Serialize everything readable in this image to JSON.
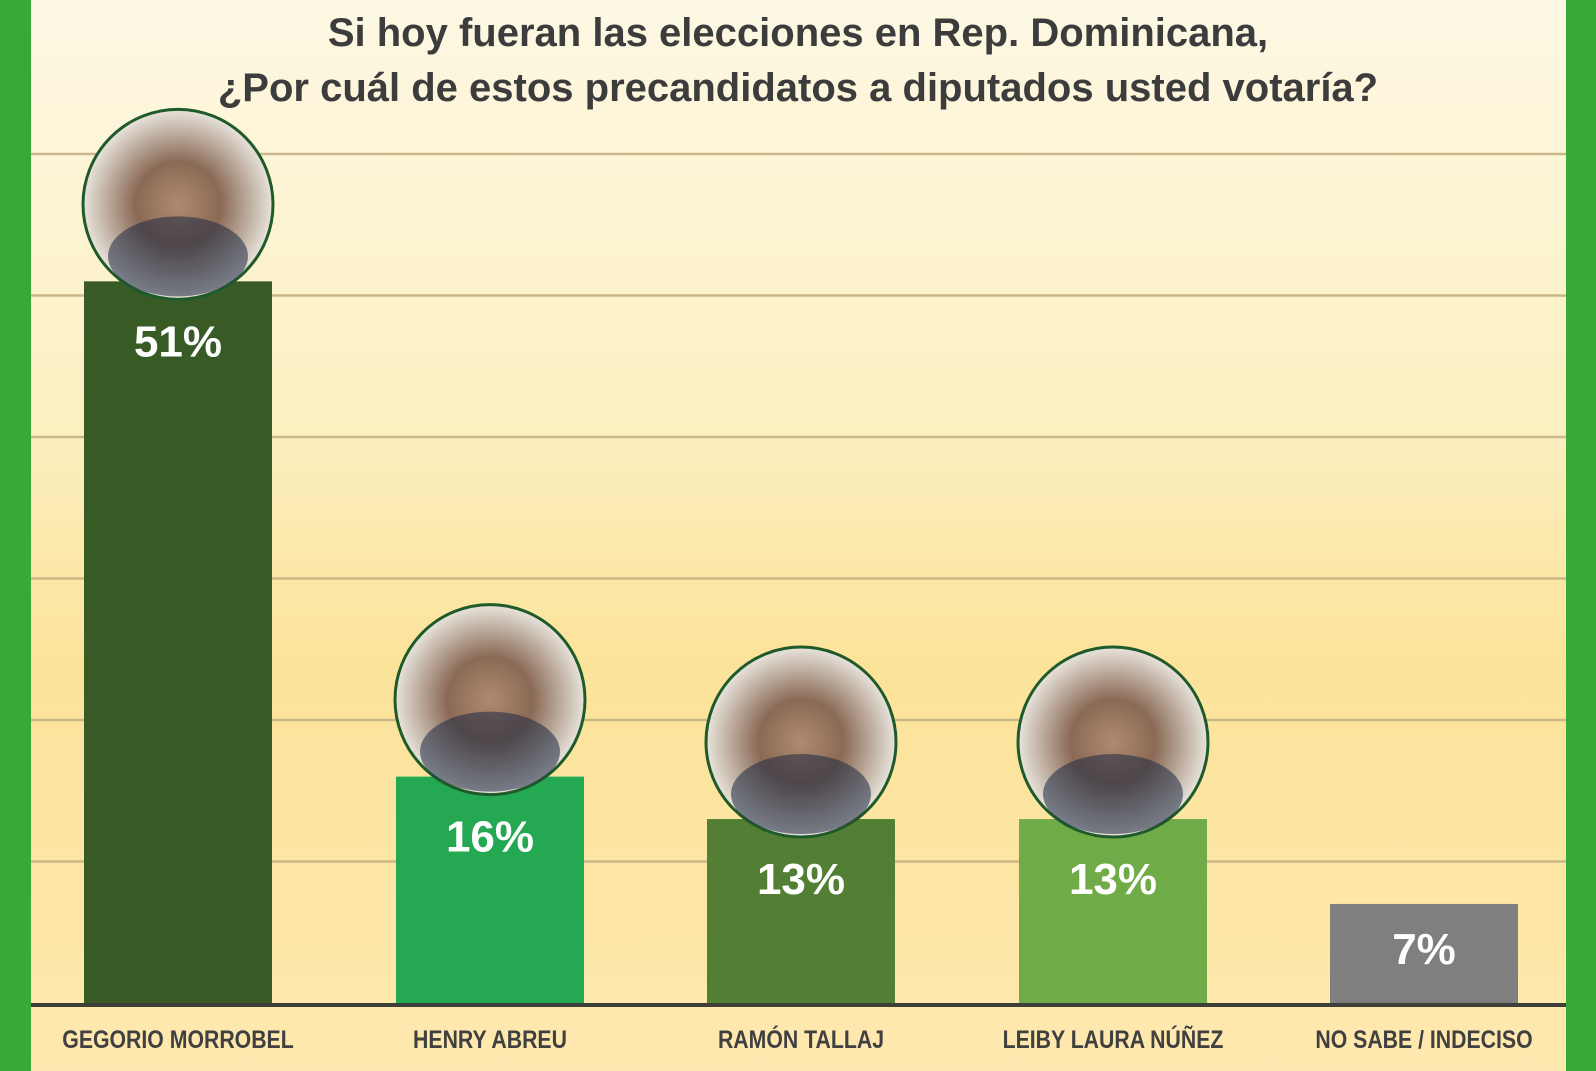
{
  "chart_data": {
    "type": "bar",
    "title": "Si hoy fueran las elecciones en Rep. Dominicana,",
    "subtitle": "¿Por cuál de estos precandidatos a diputados usted votaría?",
    "categories": [
      "GEGORIO MORROBEL",
      "HENRY ABREU",
      "RAMÓN TALLAJ",
      "LEIBY LAURA NÚÑEZ",
      "NO SABE / INDECISO"
    ],
    "values": [
      51,
      16,
      13,
      13,
      7
    ],
    "data_labels": [
      "51%",
      "16%",
      "13%",
      "13%",
      "7%"
    ],
    "colors": [
      "#385a25",
      "#24a852",
      "#527f34",
      "#6fac47",
      "#7f7f7f"
    ],
    "has_photo": [
      true,
      true,
      true,
      true,
      false
    ],
    "ylim": [
      0,
      60
    ],
    "grid": true,
    "grid_step": 10
  },
  "colors": {
    "border": "#37a935",
    "photo_ring": "#1f5a2a",
    "text": "#3c3c3c"
  }
}
